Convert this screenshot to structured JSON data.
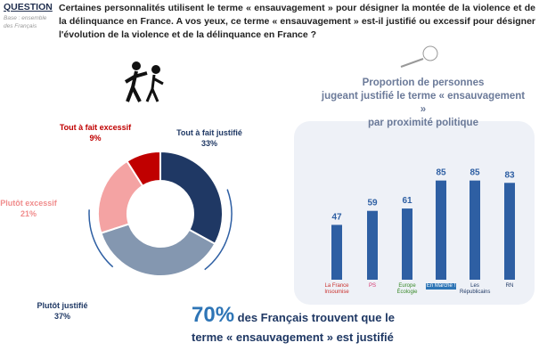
{
  "header": {
    "question_label": "QUESTION",
    "colon": ":",
    "base": "Base : ensemble des Français",
    "question": "Certaines personnalités utilisent le terme « ensauvagement » pour désigner la montée de la violence et de la délinquance en France. A vos yeux, ce terme « ensauvagement » est-il justifié ou excessif pour désigner l'évolution de la violence et de la délinquance en France ?"
  },
  "chart_data": [
    {
      "type": "pie",
      "title": "",
      "slices": [
        {
          "label": "Tout à fait justifié",
          "value": 33,
          "display": "33%",
          "color": "#1f3864"
        },
        {
          "label": "Plutôt justifié",
          "value": 37,
          "display": "37%",
          "color": "#8497b0"
        },
        {
          "label": "Plutôt excessif",
          "value": 21,
          "display": "21%",
          "color": "#f4a3a3"
        },
        {
          "label": "Tout à fait excessif",
          "value": 9,
          "display": "9%",
          "color": "#c00000"
        }
      ]
    },
    {
      "type": "bar",
      "title": "Proportion de personnes jugeant justifié le terme « ensauvagement » par proximité politique",
      "title_lines": [
        "Proportion de personnes",
        "jugeant justifié le terme « ensauvagement »",
        "par proximité politique"
      ],
      "categories": [
        "La France Insoumise",
        "PS",
        "Europe Écologie",
        "En Marche !",
        "Les Républicains",
        "RN"
      ],
      "values": [
        47,
        59,
        61,
        85,
        85,
        83
      ],
      "color": "#2e5fa3",
      "ylim": [
        0,
        100
      ]
    }
  ],
  "summary": {
    "percent": "70%",
    "line1": " des Français trouvent que le",
    "line2": "terme « ensauvagement » est justifié"
  }
}
